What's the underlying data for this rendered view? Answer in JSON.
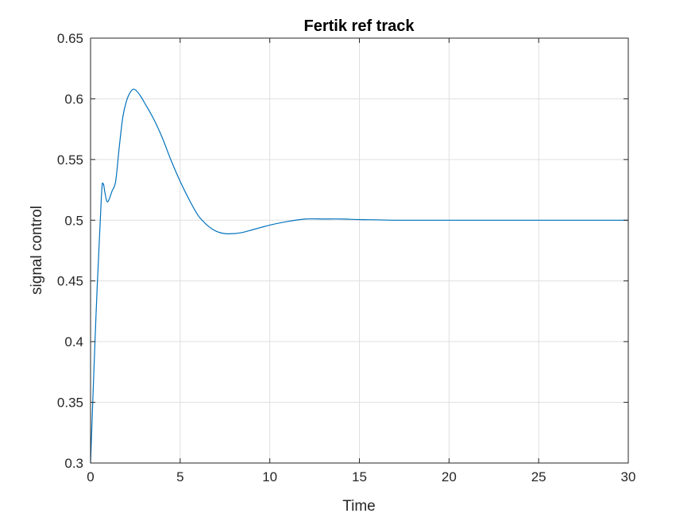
{
  "chart_data": {
    "type": "line",
    "title": "Fertik ref track",
    "xlabel": "Time",
    "ylabel": "signal control",
    "xlim": [
      0,
      30
    ],
    "ylim": [
      0.3,
      0.65
    ],
    "xticks": [
      0,
      5,
      10,
      15,
      20,
      25,
      30
    ],
    "yticks": [
      0.3,
      0.35,
      0.4,
      0.45,
      0.5,
      0.55,
      0.6,
      0.65
    ],
    "xtick_labels": [
      "0",
      "5",
      "10",
      "15",
      "20",
      "25",
      "30"
    ],
    "ytick_labels": [
      "0.3",
      "0.35",
      "0.4",
      "0.45",
      "0.5",
      "0.55",
      "0.6",
      "0.65"
    ],
    "grid": true,
    "line_color": "#0072BD",
    "series": [
      {
        "x": [
          0,
          0.3,
          0.6,
          0.7,
          0.8,
          0.9,
          1.0,
          1.2,
          1.4,
          1.6,
          1.8,
          2.0,
          2.2,
          2.4,
          2.6,
          2.8,
          3.0,
          3.5,
          4.0,
          4.5,
          5.0,
          5.5,
          6.0,
          6.5,
          7.0,
          7.5,
          8.0,
          8.5,
          9.0,
          9.5,
          10.0,
          11.0,
          12.0,
          13.0,
          14.0,
          15.0,
          16.0,
          17.0,
          18.0,
          20.0,
          22.0,
          25.0,
          30.0
        ],
        "y": [
          0.3,
          0.42,
          0.518,
          0.53,
          0.523,
          0.516,
          0.516,
          0.524,
          0.532,
          0.56,
          0.585,
          0.598,
          0.605,
          0.608,
          0.606,
          0.602,
          0.597,
          0.584,
          0.568,
          0.549,
          0.532,
          0.517,
          0.504,
          0.496,
          0.491,
          0.489,
          0.489,
          0.49,
          0.492,
          0.494,
          0.496,
          0.499,
          0.501,
          0.501,
          0.501,
          0.5005,
          0.5003,
          0.5,
          0.5,
          0.5,
          0.5,
          0.5,
          0.5
        ]
      }
    ]
  }
}
